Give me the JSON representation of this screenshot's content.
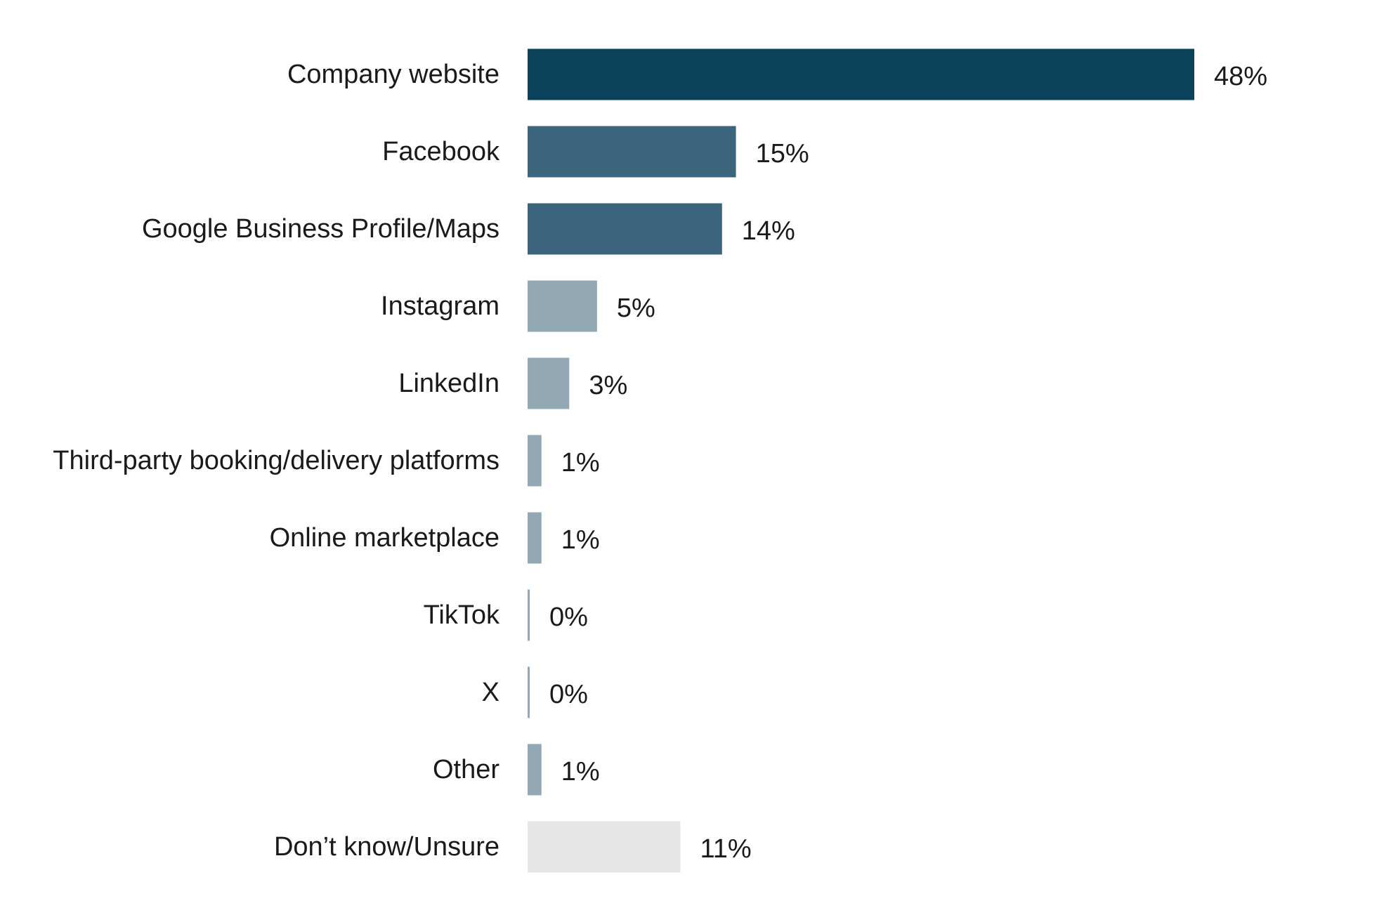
{
  "chart_data": {
    "type": "bar",
    "orientation": "horizontal",
    "title": "",
    "xlabel": "",
    "ylabel": "",
    "value_format": "percent",
    "xlim": [
      0,
      48
    ],
    "grid": false,
    "legend": "none",
    "categories": [
      "Company website",
      "Facebook",
      "Google Business Profile/Maps",
      "Instagram",
      "LinkedIn",
      "Third-party booking/delivery platforms",
      "Online marketplace",
      "TikTok",
      "X",
      "Other",
      "Don’t know/Unsure"
    ],
    "values": [
      48,
      15,
      14,
      5,
      3,
      1,
      1,
      0,
      0,
      1,
      11
    ],
    "value_labels": [
      "48%",
      "15%",
      "14%",
      "5%",
      "3%",
      "1%",
      "1%",
      "0%",
      "0%",
      "1%",
      "11%"
    ],
    "colors": [
      "#0a425a",
      "#3b657c",
      "#3b657c",
      "#92a8b5",
      "#92a8b5",
      "#92a8b5",
      "#92a8b5",
      "#92a8b5",
      "#92a8b5",
      "#92a8b5",
      "#e6e6e6"
    ]
  }
}
